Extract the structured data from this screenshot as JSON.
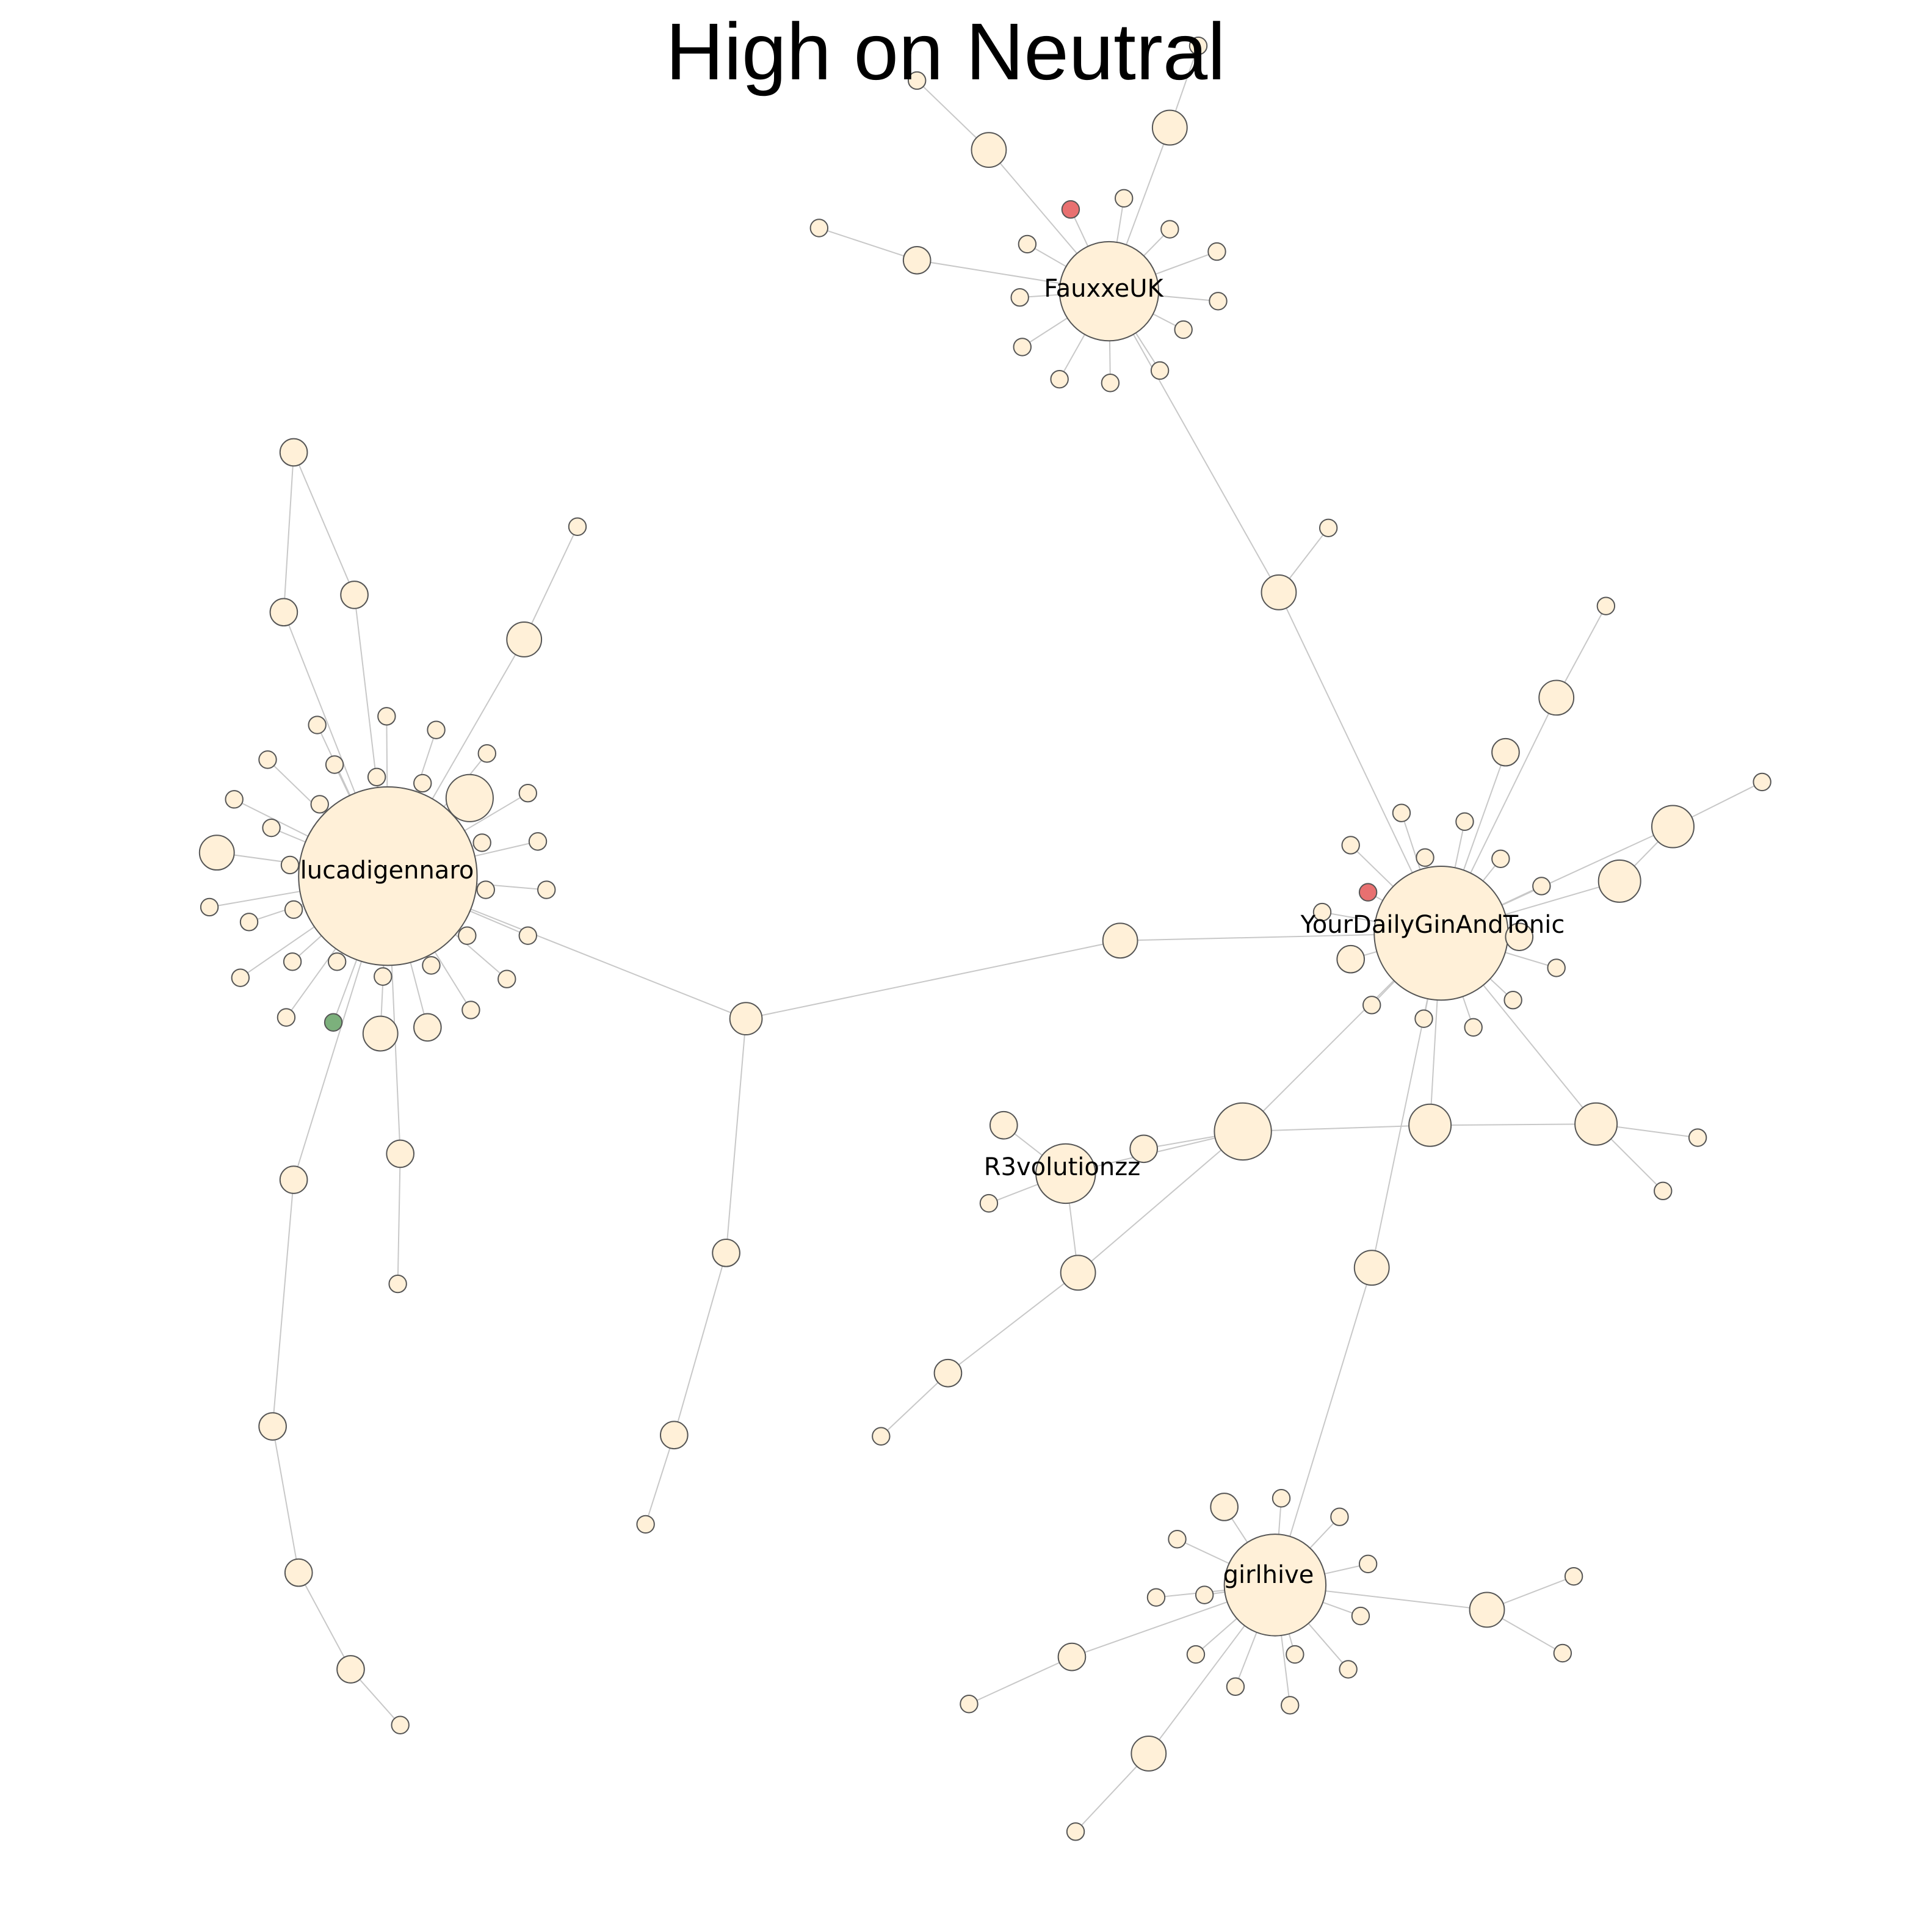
{
  "title": "High on Neutral",
  "colors": {
    "background": "#ffffff",
    "node_default": "#fff0d8",
    "node_red": "#e87070",
    "node_green": "#7cb07c",
    "node_stroke": "#555555",
    "edge": "#c8c8c8"
  },
  "labels": {
    "fauxxe": "FauxxeUK",
    "luca": "lucadigennaro",
    "gin": "YourDailyGinAndTonic",
    "r3": "R3volutionzz",
    "girl": "girlhive"
  },
  "chart_data": {
    "type": "network",
    "labeled_hubs": [
      "FauxxeUK",
      "lucadigennaro",
      "YourDailyGinAndTonic",
      "R3volutionzz",
      "girlhive"
    ],
    "node_color_categories": [
      "default",
      "red",
      "green"
    ]
  }
}
